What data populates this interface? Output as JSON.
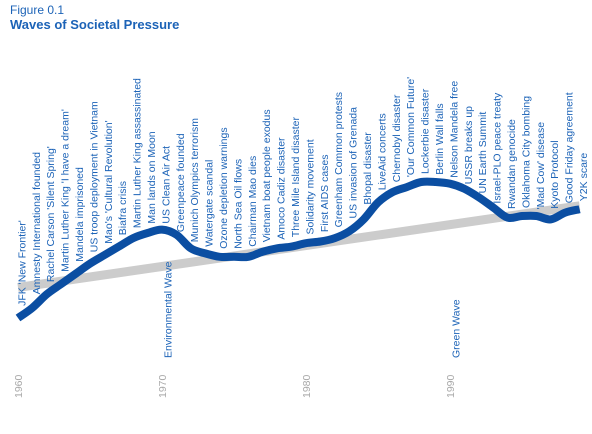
{
  "figure": {
    "label": "Figure 0.1",
    "title": "Waves of Societal Pressure"
  },
  "chart_data": {
    "type": "line",
    "title": "Waves of Societal Pressure",
    "xlim": [
      1960,
      1999
    ],
    "x_ticks": [
      "1960",
      "1970",
      "1980",
      "1990"
    ],
    "grid": false,
    "legend": "none",
    "colors": {
      "pressure": "#0b4ea2",
      "trend": "#cccccc",
      "text": "#1c63b7",
      "axis_labels": "#a8a8a8"
    },
    "series": [
      {
        "role": "trend",
        "x": [
          1960,
          1999
        ],
        "y": [
          0.18,
          0.66
        ]
      },
      {
        "role": "pressure",
        "x": [
          1960,
          1961,
          1962,
          1963,
          1964,
          1965,
          1966,
          1967,
          1968,
          1969,
          1970,
          1971,
          1972,
          1973,
          1974,
          1975,
          1976,
          1977,
          1978,
          1979,
          1980,
          1981,
          1982,
          1983,
          1984,
          1985,
          1986,
          1987,
          1988,
          1989,
          1990,
          1991,
          1992,
          1993,
          1994,
          1995,
          1996,
          1997,
          1998,
          1999
        ],
        "y": [
          0.0,
          0.06,
          0.14,
          0.2,
          0.26,
          0.32,
          0.37,
          0.42,
          0.47,
          0.5,
          0.52,
          0.49,
          0.41,
          0.38,
          0.36,
          0.36,
          0.36,
          0.39,
          0.41,
          0.42,
          0.44,
          0.45,
          0.47,
          0.51,
          0.58,
          0.68,
          0.74,
          0.77,
          0.8,
          0.8,
          0.79,
          0.76,
          0.71,
          0.65,
          0.59,
          0.6,
          0.6,
          0.58,
          0.62,
          0.64
        ]
      }
    ],
    "x_labels": [
      {
        "text": "1960",
        "x": 1960
      },
      {
        "text": "1970",
        "x": 1970
      },
      {
        "text": "1980",
        "x": 1980
      },
      {
        "text": "1990",
        "x": 1990
      }
    ],
    "wave_labels": [
      {
        "text": "Environmental Wave",
        "x": 1970.3
      },
      {
        "text": "Green Wave",
        "x": 1990.3
      }
    ],
    "events": [
      {
        "text": "JFK 'New Frontier'",
        "x": 1960.1
      },
      {
        "text": "Amnesty International founded",
        "x": 1961.1
      },
      {
        "text": "Rachel Carson 'Silent Spring'",
        "x": 1962.1
      },
      {
        "text": "Martin Luther King 'I have a dream'",
        "x": 1963.1
      },
      {
        "text": "Mandela imprisoned",
        "x": 1964.1
      },
      {
        "text": "US troop deployment in Vietnam",
        "x": 1965.1
      },
      {
        "text": "Mao's 'Cultural Revolution'",
        "x": 1966.1
      },
      {
        "text": "Biafra crisis",
        "x": 1967.1
      },
      {
        "text": "Martin Luther King assassinated",
        "x": 1968.1
      },
      {
        "text": "Man lands on Moon",
        "x": 1969.1
      },
      {
        "text": "US Clean Air Act",
        "x": 1970.1
      },
      {
        "text": "Greenpeace founded",
        "x": 1971.1
      },
      {
        "text": "Munich Olympics terrorism",
        "x": 1972.1
      },
      {
        "text": "Watergate scandal",
        "x": 1973.1
      },
      {
        "text": "Ozone depletion warnings",
        "x": 1974.1
      },
      {
        "text": "North Sea Oil flows",
        "x": 1975.1
      },
      {
        "text": "Chairman Mao dies",
        "x": 1976.1
      },
      {
        "text": "Vietnam boat people exodus",
        "x": 1977.1
      },
      {
        "text": "Amoco Cadiz disaster",
        "x": 1978.1
      },
      {
        "text": "Three Mile Island disaster",
        "x": 1979.1
      },
      {
        "text": "Solidarity movement",
        "x": 1980.1
      },
      {
        "text": "First AIDS cases",
        "x": 1981.1
      },
      {
        "text": "Greenham Common protests",
        "x": 1982.1
      },
      {
        "text": "US invasion of Grenada",
        "x": 1983.1
      },
      {
        "text": "Bhopal disaster",
        "x": 1984.1
      },
      {
        "text": "LiveAid concerts",
        "x": 1985.1
      },
      {
        "text": "Chernobyl disaster",
        "x": 1986.1
      },
      {
        "text": "'Our Common Future'",
        "x": 1987.1
      },
      {
        "text": "Lockerbie disaster",
        "x": 1988.1
      },
      {
        "text": "Berlin Wall falls",
        "x": 1989.1
      },
      {
        "text": "Nelson Mandela free",
        "x": 1990.1
      },
      {
        "text": "USSR breaks up",
        "x": 1991.1
      },
      {
        "text": "UN Earth Summit",
        "x": 1992.1
      },
      {
        "text": "Israel-PLO peace treaty",
        "x": 1993.1
      },
      {
        "text": "Rwandan genocide",
        "x": 1994.1
      },
      {
        "text": "Oklahoma City bombing",
        "x": 1995.1
      },
      {
        "text": "'Mad Cow' disease",
        "x": 1996.1
      },
      {
        "text": "Kyoto Protocol",
        "x": 1997.1
      },
      {
        "text": "Good Friday agreement",
        "x": 1998.1
      },
      {
        "text": "Y2K scare",
        "x": 1999.1
      }
    ]
  }
}
